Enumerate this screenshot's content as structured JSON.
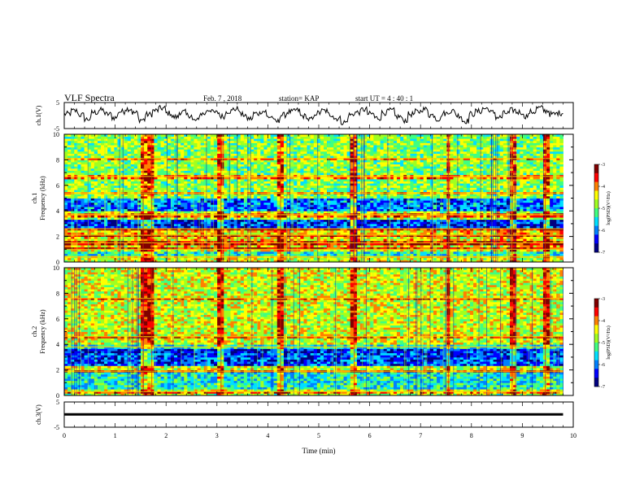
{
  "header": {
    "title": "VLF Spectra",
    "date": "Feb. 7 , 2018",
    "station": "station= KAP",
    "start": "start UT =  4 : 40 : 1"
  },
  "colors": {
    "colormap": [
      "#000080",
      "#0000ff",
      "#0080ff",
      "#00e0ff",
      "#40ff80",
      "#a0ff20",
      "#ffff00",
      "#ff8000",
      "#ff0000",
      "#800000"
    ],
    "trace": "#000000"
  },
  "chart_data": [
    {
      "type": "line",
      "panel": "ch1-waveform",
      "ylabel": "ch.1(V)",
      "ylim": [
        -5,
        5
      ],
      "yticks": [
        5,
        -5
      ],
      "x_range_min": [
        0,
        9.8
      ],
      "description_values": "noisy waveform fluctuating mostly between -3 and 3 V",
      "y": [
        0.6,
        1.8,
        0.2,
        -1.4,
        1.2,
        2.1,
        0.5,
        -0.8,
        1.5,
        2.6,
        1.0,
        -1.6,
        0.4,
        1.9,
        2.8,
        0.9,
        -0.6,
        1.3,
        0.1,
        -1.9,
        0.7,
        2.2,
        1.1,
        -0.3,
        1.7,
        2.5,
        0.3,
        -1.2,
        0.8,
        1.6,
        -0.5,
        -2.3,
        0.2,
        1.4,
        2.0,
        -0.2,
        -1.5,
        0.9,
        1.8,
        0.4,
        -1.1,
        -2.6,
        0.3,
        1.2,
        2.3,
        0.6,
        -0.9,
        1.1,
        1.9,
        -0.4,
        -1.8,
        0.5,
        1.5,
        2.4,
        0.2,
        -1.3,
        0.8,
        1.7,
        0.0,
        -2.1,
        0.6,
        1.6,
        2.7,
        1.2,
        -0.7,
        0.9,
        2.0,
        1.3,
        -0.2,
        1.4,
        2.9,
        1.8,
        0.5,
        1.0,
        2.6
      ]
    },
    {
      "type": "heatmap",
      "panel": "ch1-spectrogram",
      "ylabel": "ch.1 Frequency (kHz)",
      "ylim": [
        0,
        10
      ],
      "yticks": [
        0,
        2,
        4,
        6,
        8,
        10
      ],
      "colorbar": {
        "label": "log(PSD)(V²/Hz)",
        "range": [
          -7,
          -3
        ],
        "ticks": [
          -3,
          -4,
          -5,
          -6,
          -7
        ]
      },
      "row_profile_khz": [
        {
          "band": [
            0,
            0.3
          ],
          "level": -4.6
        },
        {
          "band": [
            0.3,
            1.0
          ],
          "level": -5.4
        },
        {
          "band": [
            1.0,
            2.6
          ],
          "level": -4.4
        },
        {
          "band": [
            2.6,
            3.4
          ],
          "level": -6.3
        },
        {
          "band": [
            3.4,
            4.0
          ],
          "level": -4.8
        },
        {
          "band": [
            4.0,
            5.0
          ],
          "level": -6.0
        },
        {
          "band": [
            5.0,
            10.0
          ],
          "level": -4.9
        }
      ],
      "bright_lines_khz": [
        0.4,
        1.0,
        1.5,
        2.1,
        2.6,
        3.7,
        5.4,
        6.7,
        8.1
      ],
      "impulsive_columns_min": [
        1.55,
        1.72,
        3.08,
        4.25,
        5.7,
        7.55,
        8.8,
        9.45
      ]
    },
    {
      "type": "heatmap",
      "panel": "ch2-spectrogram",
      "ylabel": "ch.2 Frequency (kHz)",
      "ylim": [
        0,
        10
      ],
      "yticks": [
        0,
        2,
        4,
        6,
        8,
        10
      ],
      "colorbar": {
        "label": "log(PSD)(V²/Hz)",
        "range": [
          -7,
          -3
        ],
        "ticks": [
          -3,
          -4,
          -5,
          -6,
          -7
        ]
      },
      "row_profile_khz": [
        {
          "band": [
            0,
            0.3
          ],
          "level": -4.8
        },
        {
          "band": [
            0.3,
            1.8
          ],
          "level": -5.5
        },
        {
          "band": [
            1.8,
            2.4
          ],
          "level": -4.6
        },
        {
          "band": [
            2.4,
            3.4
          ],
          "level": -6.2
        },
        {
          "band": [
            3.4,
            4.0
          ],
          "level": -6.4
        },
        {
          "band": [
            4.0,
            10.0
          ],
          "level": -4.6
        }
      ],
      "bright_lines_khz": [
        0.3,
        1.9,
        3.8,
        4.6,
        7.6
      ],
      "impulsive_columns_min": [
        1.55,
        1.72,
        3.08,
        4.25,
        5.7,
        7.55,
        8.8,
        9.45
      ]
    },
    {
      "type": "line",
      "panel": "ch3-waveform",
      "ylabel": "ch.3(V)",
      "ylim": [
        -5,
        5
      ],
      "yticks": [
        5,
        -5
      ],
      "y_constant": 0.1
    }
  ],
  "xaxis": {
    "label": "Time (min)",
    "ticks": [
      "0",
      "1",
      "2",
      "3",
      "4",
      "5",
      "6",
      "7",
      "8",
      "9",
      "10"
    ],
    "range": [
      0,
      10
    ]
  }
}
